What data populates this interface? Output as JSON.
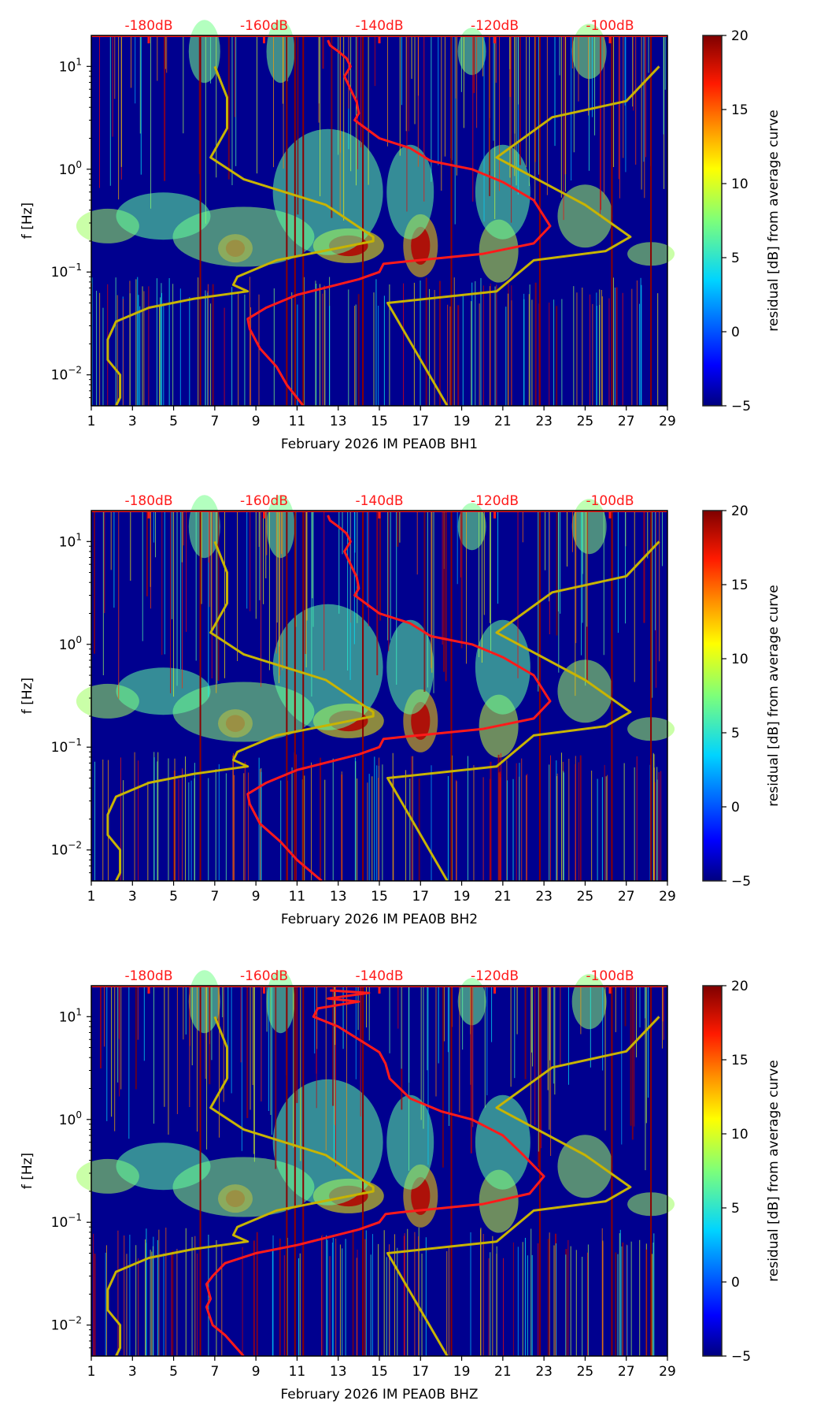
{
  "chart_data": [
    {
      "type": "heatmap",
      "title": "",
      "xlabel": "February 2026 IM PEA0B  BH1",
      "ylabel": "f [Hz]",
      "x_ticks": [
        "1",
        "3",
        "5",
        "7",
        "9",
        "11",
        "13",
        "15",
        "17",
        "19",
        "21",
        "23",
        "25",
        "27",
        "29"
      ],
      "xlim": [
        1,
        29
      ],
      "y_scale": "log",
      "ylim": [
        0.005,
        20
      ],
      "y_ticks": [
        "10^1",
        "10^0",
        "10^-1",
        "10^-2"
      ],
      "top_axis_labels": [
        "-180dB",
        "-160dB",
        "-140dB",
        "-120dB",
        "-100dB"
      ],
      "colorbar": {
        "label": "residual [dB] from average curve",
        "range": [
          -5,
          20
        ],
        "ticks": [
          "20",
          "15",
          "10",
          "5",
          "0",
          "−5"
        ],
        "colormap": "jet"
      },
      "series": [
        {
          "name": "average PSD curve",
          "color": "#ff1a1a",
          "points": [
            [
              12.5,
              18
            ],
            [
              12.6,
              16
            ],
            [
              13.0,
              14
            ],
            [
              13.4,
              12
            ],
            [
              13.6,
              10
            ],
            [
              13.3,
              8
            ],
            [
              13.6,
              6
            ],
            [
              13.9,
              4.5
            ],
            [
              14.0,
              3.5
            ],
            [
              13.8,
              3.0
            ],
            [
              15.0,
              2.0
            ],
            [
              16.5,
              1.6
            ],
            [
              17.5,
              1.2
            ],
            [
              19.5,
              1.0
            ],
            [
              21.0,
              0.75
            ],
            [
              22.5,
              0.5
            ],
            [
              23.3,
              0.28
            ],
            [
              22.5,
              0.19
            ],
            [
              20.0,
              0.15
            ],
            [
              16.0,
              0.125
            ],
            [
              15.2,
              0.12
            ],
            [
              15.0,
              0.1
            ],
            [
              14.0,
              0.085
            ],
            [
              11.0,
              0.06
            ],
            [
              9.5,
              0.045
            ],
            [
              8.6,
              0.035
            ],
            [
              8.7,
              0.028
            ],
            [
              9.2,
              0.018
            ],
            [
              10.0,
              0.012
            ],
            [
              10.5,
              0.008
            ],
            [
              11.3,
              0.005
            ]
          ]
        },
        {
          "name": "low noise model",
          "color": "#c8b400",
          "points": [
            [
              7.0,
              10
            ],
            [
              7.6,
              5
            ],
            [
              7.6,
              2.5
            ],
            [
              6.8,
              1.3
            ],
            [
              8.4,
              0.8
            ],
            [
              12.4,
              0.45
            ],
            [
              14.7,
              0.22
            ],
            [
              14.7,
              0.2
            ],
            [
              10.0,
              0.13
            ],
            [
              8.1,
              0.09
            ],
            [
              7.9,
              0.075
            ],
            [
              8.6,
              0.065
            ],
            [
              6.0,
              0.055
            ],
            [
              3.8,
              0.045
            ],
            [
              2.2,
              0.033
            ],
            [
              1.8,
              0.022
            ],
            [
              1.8,
              0.014
            ],
            [
              2.4,
              0.01
            ],
            [
              2.4,
              0.006
            ],
            [
              2.2,
              0.005
            ]
          ]
        },
        {
          "name": "high noise model",
          "color": "#c8b400",
          "points": [
            [
              28.6,
              10
            ],
            [
              27.0,
              4.6
            ],
            [
              23.4,
              3.2
            ],
            [
              20.7,
              1.3
            ],
            [
              25.0,
              0.45
            ],
            [
              27.2,
              0.22
            ],
            [
              26.0,
              0.16
            ],
            [
              22.5,
              0.13
            ],
            [
              20.7,
              0.065
            ],
            [
              15.4,
              0.05
            ],
            [
              18.3,
              0.005
            ]
          ]
        }
      ]
    },
    {
      "type": "heatmap",
      "title": "",
      "xlabel": "February 2026 IM PEA0B  BH2",
      "ylabel": "f [Hz]",
      "x_ticks": [
        "1",
        "3",
        "5",
        "7",
        "9",
        "11",
        "13",
        "15",
        "17",
        "19",
        "21",
        "23",
        "25",
        "27",
        "29"
      ],
      "xlim": [
        1,
        29
      ],
      "y_scale": "log",
      "ylim": [
        0.005,
        20
      ],
      "y_ticks": [
        "10^1",
        "10^0",
        "10^-1",
        "10^-2"
      ],
      "top_axis_labels": [
        "-180dB",
        "-160dB",
        "-140dB",
        "-120dB",
        "-100dB"
      ],
      "colorbar": {
        "label": "residual [dB] from average curve",
        "range": [
          -5,
          20
        ],
        "ticks": [
          "20",
          "15",
          "10",
          "5",
          "0",
          "−5"
        ],
        "colormap": "jet"
      },
      "series": [
        {
          "name": "average PSD curve",
          "color": "#ff1a1a",
          "points": [
            [
              12.5,
              18
            ],
            [
              12.6,
              16
            ],
            [
              13.0,
              14
            ],
            [
              13.4,
              12
            ],
            [
              13.6,
              10
            ],
            [
              13.3,
              8
            ],
            [
              13.6,
              6
            ],
            [
              13.9,
              4.5
            ],
            [
              14.0,
              3.5
            ],
            [
              13.8,
              3.0
            ],
            [
              15.0,
              2.0
            ],
            [
              16.5,
              1.6
            ],
            [
              17.5,
              1.2
            ],
            [
              19.5,
              1.0
            ],
            [
              21.0,
              0.75
            ],
            [
              22.5,
              0.5
            ],
            [
              23.3,
              0.28
            ],
            [
              22.5,
              0.19
            ],
            [
              20.0,
              0.15
            ],
            [
              16.0,
              0.125
            ],
            [
              15.2,
              0.12
            ],
            [
              15.0,
              0.1
            ],
            [
              14.0,
              0.085
            ],
            [
              11.0,
              0.06
            ],
            [
              9.5,
              0.045
            ],
            [
              8.6,
              0.035
            ],
            [
              8.7,
              0.028
            ],
            [
              9.2,
              0.018
            ],
            [
              10.2,
              0.012
            ],
            [
              11.0,
              0.008
            ],
            [
              12.2,
              0.005
            ]
          ]
        },
        {
          "name": "low noise model",
          "color": "#c8b400",
          "points": [
            [
              7.0,
              10
            ],
            [
              7.6,
              5
            ],
            [
              7.6,
              2.5
            ],
            [
              6.8,
              1.3
            ],
            [
              8.4,
              0.8
            ],
            [
              12.4,
              0.45
            ],
            [
              14.7,
              0.22
            ],
            [
              14.7,
              0.2
            ],
            [
              10.0,
              0.13
            ],
            [
              8.1,
              0.09
            ],
            [
              7.9,
              0.075
            ],
            [
              8.6,
              0.065
            ],
            [
              6.0,
              0.055
            ],
            [
              3.8,
              0.045
            ],
            [
              2.2,
              0.033
            ],
            [
              1.8,
              0.022
            ],
            [
              1.8,
              0.014
            ],
            [
              2.4,
              0.01
            ],
            [
              2.4,
              0.006
            ],
            [
              2.2,
              0.005
            ]
          ]
        },
        {
          "name": "high noise model",
          "color": "#c8b400",
          "points": [
            [
              28.6,
              10
            ],
            [
              27.0,
              4.6
            ],
            [
              23.4,
              3.2
            ],
            [
              20.7,
              1.3
            ],
            [
              25.0,
              0.45
            ],
            [
              27.2,
              0.22
            ],
            [
              26.0,
              0.16
            ],
            [
              22.5,
              0.13
            ],
            [
              20.7,
              0.065
            ],
            [
              15.4,
              0.05
            ],
            [
              18.3,
              0.005
            ]
          ]
        }
      ]
    },
    {
      "type": "heatmap",
      "title": "",
      "xlabel": "February 2026 IM PEA0B  BHZ",
      "ylabel": "f [Hz]",
      "x_ticks": [
        "1",
        "3",
        "5",
        "7",
        "9",
        "11",
        "13",
        "15",
        "17",
        "19",
        "21",
        "23",
        "25",
        "27",
        "29"
      ],
      "xlim": [
        1,
        29
      ],
      "y_scale": "log",
      "ylim": [
        0.005,
        20
      ],
      "y_ticks": [
        "10^1",
        "10^0",
        "10^-1",
        "10^-2"
      ],
      "top_axis_labels": [
        "-180dB",
        "-160dB",
        "-140dB",
        "-120dB",
        "-100dB"
      ],
      "colorbar": {
        "label": "residual [dB] from average curve",
        "range": [
          -5,
          20
        ],
        "ticks": [
          "20",
          "15",
          "10",
          "5",
          "0",
          "−5"
        ],
        "colormap": "jet"
      },
      "series": [
        {
          "name": "average PSD curve",
          "color": "#ff1a1a",
          "points": [
            [
              12.6,
              18
            ],
            [
              14.5,
              17
            ],
            [
              12.5,
              15
            ],
            [
              14.0,
              14
            ],
            [
              12.0,
              12
            ],
            [
              11.8,
              10
            ],
            [
              13.0,
              8
            ],
            [
              14.0,
              6
            ],
            [
              15.0,
              4.5
            ],
            [
              15.3,
              3.5
            ],
            [
              15.5,
              2.5
            ],
            [
              16.5,
              1.6
            ],
            [
              18.0,
              1.2
            ],
            [
              19.5,
              1.0
            ],
            [
              21.0,
              0.7
            ],
            [
              22.0,
              0.45
            ],
            [
              23.0,
              0.28
            ],
            [
              22.3,
              0.19
            ],
            [
              20.0,
              0.15
            ],
            [
              16.0,
              0.125
            ],
            [
              15.3,
              0.12
            ],
            [
              15.0,
              0.1
            ],
            [
              14.0,
              0.085
            ],
            [
              11.0,
              0.06
            ],
            [
              9.0,
              0.05
            ],
            [
              7.5,
              0.04
            ],
            [
              6.9,
              0.03
            ],
            [
              6.6,
              0.025
            ],
            [
              6.8,
              0.018
            ],
            [
              6.6,
              0.015
            ],
            [
              6.9,
              0.01
            ],
            [
              7.5,
              0.008
            ],
            [
              8.4,
              0.005
            ]
          ]
        },
        {
          "name": "low noise model",
          "color": "#c8b400",
          "points": [
            [
              7.0,
              10
            ],
            [
              7.6,
              5
            ],
            [
              7.6,
              2.5
            ],
            [
              6.8,
              1.3
            ],
            [
              8.4,
              0.8
            ],
            [
              12.4,
              0.45
            ],
            [
              14.7,
              0.22
            ],
            [
              14.7,
              0.2
            ],
            [
              10.0,
              0.13
            ],
            [
              8.1,
              0.09
            ],
            [
              7.9,
              0.075
            ],
            [
              8.6,
              0.065
            ],
            [
              6.0,
              0.055
            ],
            [
              3.8,
              0.045
            ],
            [
              2.2,
              0.033
            ],
            [
              1.8,
              0.022
            ],
            [
              1.8,
              0.014
            ],
            [
              2.4,
              0.01
            ],
            [
              2.4,
              0.006
            ],
            [
              2.2,
              0.005
            ]
          ]
        },
        {
          "name": "high noise model",
          "color": "#c8b400",
          "points": [
            [
              28.6,
              10
            ],
            [
              27.0,
              4.6
            ],
            [
              23.4,
              3.2
            ],
            [
              20.7,
              1.3
            ],
            [
              25.0,
              0.45
            ],
            [
              27.2,
              0.22
            ],
            [
              26.0,
              0.16
            ],
            [
              22.5,
              0.13
            ],
            [
              20.7,
              0.065
            ],
            [
              15.4,
              0.05
            ],
            [
              18.3,
              0.005
            ]
          ]
        }
      ]
    }
  ]
}
